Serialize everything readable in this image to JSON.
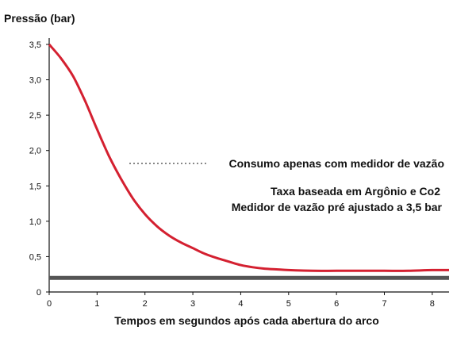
{
  "chart_data": {
    "type": "line",
    "title": "",
    "ylabel": "Pressão (bar)",
    "xlabel": "Tempos em segundos após cada abertura do arco",
    "xlim": [
      0,
      8.35
    ],
    "ylim": [
      0,
      3.5
    ],
    "x_ticks": [
      0,
      1,
      2,
      3,
      4,
      5,
      6,
      7,
      8
    ],
    "x_tick_labels": [
      "0",
      "1",
      "2",
      "3",
      "4",
      "5",
      "6",
      "7",
      "8"
    ],
    "y_ticks": [
      0,
      0.5,
      1.0,
      1.5,
      2.0,
      2.5,
      3.0,
      3.5
    ],
    "y_tick_labels": [
      "0",
      "0,5",
      "1,0",
      "1,5",
      "2,0",
      "2,5",
      "3,0",
      "3,5"
    ],
    "grid": false,
    "legend": "none",
    "series": [
      {
        "color": "#d42030",
        "x": [
          0,
          0.25,
          0.5,
          0.75,
          1.0,
          1.25,
          1.5,
          1.75,
          2.0,
          2.25,
          2.5,
          2.75,
          3.0,
          3.25,
          3.5,
          3.75,
          4.0,
          4.25,
          4.5,
          4.75,
          5.0,
          5.5,
          6.0,
          6.5,
          7.0,
          7.5,
          8.0,
          8.35
        ],
        "y": [
          3.5,
          3.3,
          3.05,
          2.7,
          2.3,
          1.92,
          1.6,
          1.32,
          1.1,
          0.93,
          0.8,
          0.7,
          0.62,
          0.54,
          0.48,
          0.43,
          0.38,
          0.35,
          0.33,
          0.32,
          0.31,
          0.3,
          0.3,
          0.3,
          0.3,
          0.3,
          0.31,
          0.31
        ]
      },
      {
        "color": "#555555",
        "x": [
          0,
          8.35
        ],
        "y": [
          0.2,
          0.2
        ]
      }
    ],
    "annotations": {
      "consumption": "Consumo apenas com medidor de vazão",
      "line1": "Taxa baseada em Argônio e Co2",
      "line2": "Medidor de vazão pré ajustado a 3,5 bar"
    }
  }
}
